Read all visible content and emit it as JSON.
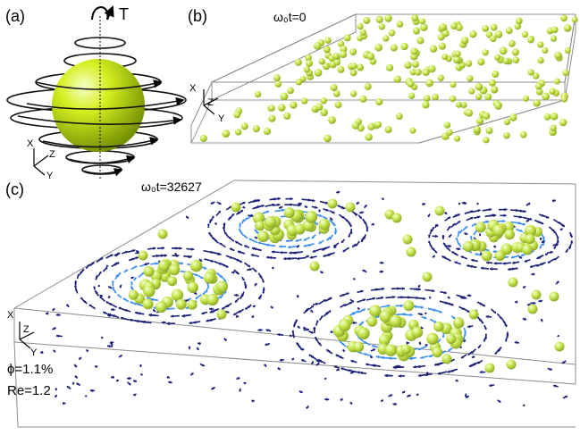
{
  "panels": {
    "a": {
      "label": "(a)",
      "torque_label": "T",
      "axes": {
        "x": "X",
        "y": "Y",
        "z": "Z"
      }
    },
    "b": {
      "label": "(b)",
      "time_label": "ω₀t=0",
      "axes": {
        "x": "X",
        "y": "Y",
        "z": "Z"
      }
    },
    "c": {
      "label": "(c)",
      "time_label": "ω₀t=32627",
      "axes": {
        "x": "X",
        "y": "Y",
        "z": "Z"
      },
      "phi": "ϕ=1.1%",
      "re": "Re=1.2"
    }
  },
  "colors": {
    "particle": "#c7e34a",
    "particle_edge": "#8aa326",
    "sphere": "#c8f000",
    "flow_dark": "#1a1f78",
    "flow_light": "#3a8ff0",
    "box": "#8c8c8c"
  }
}
